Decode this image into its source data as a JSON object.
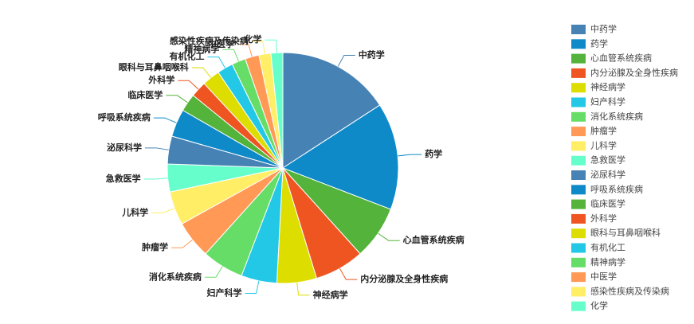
{
  "chart_data": {
    "type": "pie",
    "categories": [
      "中药学",
      "药学",
      "心血管系统疾病",
      "内分泌腺及全身性疾病",
      "神经病学",
      "妇产科学",
      "消化系统疾病",
      "肿瘤学",
      "儿科学",
      "急救医学",
      "泌尿科学",
      "呼吸系统疾病",
      "临床医学",
      "外科学",
      "眼科与耳鼻咽喉科",
      "有机化工",
      "精神病学",
      "中医学",
      "感染性疾病及传染病",
      "化学"
    ],
    "values": [
      57,
      54,
      27,
      25,
      20,
      18,
      21,
      19,
      17,
      14,
      14,
      14,
      9,
      8,
      9,
      8,
      7,
      7,
      6,
      6
    ],
    "colors": [
      "#4682b4",
      "#0f8ac9",
      "#53b33a",
      "#ee5521",
      "#dddd00",
      "#22c8e6",
      "#66dd66",
      "#ff9955",
      "#ffee66",
      "#66ffcc",
      "#4682b4",
      "#0f8ac9",
      "#53b33a",
      "#ee5521",
      "#dddd00",
      "#22c8e6",
      "#66dd66",
      "#ff9955",
      "#ffee66",
      "#66ffcc"
    ]
  }
}
